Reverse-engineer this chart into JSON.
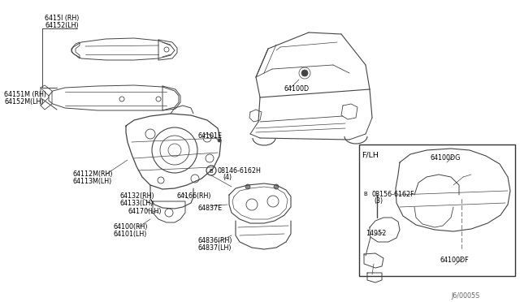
{
  "background_color": "#ffffff",
  "line_color": "#444444",
  "text_color": "#000000",
  "fig_width": 6.4,
  "fig_height": 3.72,
  "diagram_code": "J6/0005S",
  "labels": {
    "top_left_1": "6415I (RH)",
    "top_left_2": "64152(LH)",
    "mid_left_1": "64151M (RH)",
    "mid_left_2": "64152M(LH)",
    "center_part": "64100D",
    "center_sub": "64101E",
    "part_64112M": "64112M(RH)",
    "part_64113M": "64113M(LH)",
    "part_64132": "64132(RH)",
    "part_64133": "64133(LH)",
    "part_64166": "64166(RH)",
    "part_64170": "64170(LH)",
    "part_64100": "64100(RH)",
    "part_64101": "64101(LH)",
    "part_bolt1": "08146-6162H",
    "part_bolt1b": "(4)",
    "part_64837E": "64837E",
    "part_64836": "64836(RH)",
    "part_64837": "64837(LH)",
    "inset_label": "F/LH",
    "inset_64100DG": "64100DG",
    "inset_bolt": "08156-6162F",
    "inset_bolt_b": "(3)",
    "inset_14952": "14952",
    "inset_64100DF": "64100DF"
  }
}
